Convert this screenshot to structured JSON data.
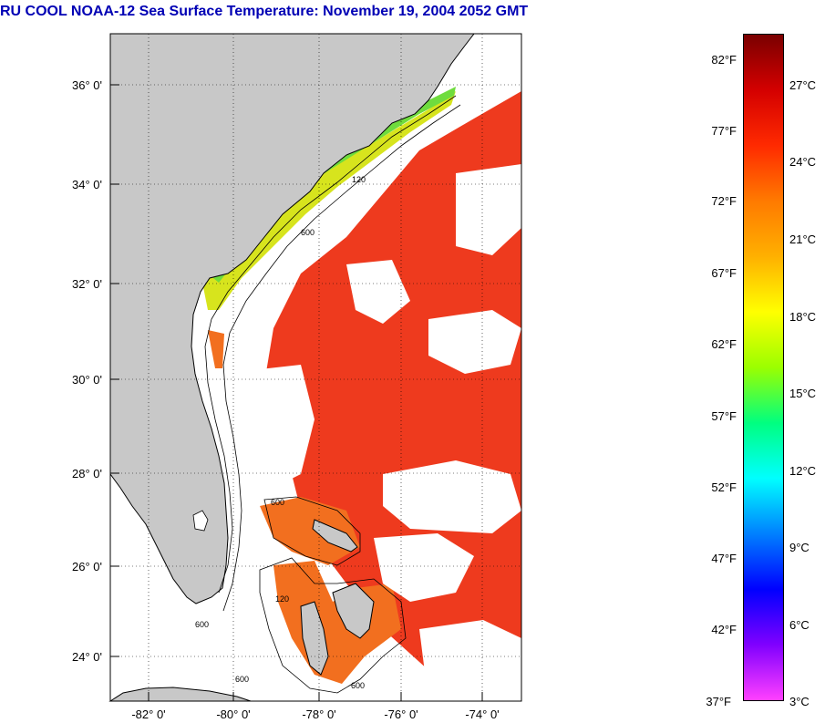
{
  "title": "RU COOL  NOAA-12  Sea Surface Temperature:  November 19, 2004 2052 GMT",
  "colors": {
    "title": "#0000b4",
    "land": "#c8c8c8",
    "ocean_warm": "#ee3a1e",
    "ocean_shelf": "#f26f1f",
    "coastal_yellow": "#d7e41d",
    "coastal_green": "#6fdc3e",
    "cloud": "#ffffff"
  },
  "map": {
    "lat_labels": [
      "36° 0'",
      "34° 0'",
      "32° 0'",
      "30° 0'",
      "28° 0'",
      "26° 0'",
      "24° 0'"
    ],
    "lon_labels": [
      "-82° 0'",
      "-80° 0'",
      "-78° 0'",
      "-76° 0'",
      "-74° 0'"
    ],
    "isobath_labels": [
      "120",
      "600",
      "600",
      "120",
      "600",
      "600",
      "600"
    ]
  },
  "colorbar": {
    "fahrenheit_labels": [
      "82°F",
      "77°F",
      "72°F",
      "67°F",
      "62°F",
      "57°F",
      "52°F",
      "47°F",
      "42°F",
      "37°F"
    ],
    "celsius_labels": [
      "27°C",
      "24°C",
      "21°C",
      "18°C",
      "15°C",
      "12°C",
      "9°C",
      "6°C",
      "3°C"
    ],
    "gradient_stops": [
      "#7a0000",
      "#d40000",
      "#ff2a00",
      "#ff7a00",
      "#ffb000",
      "#ffff00",
      "#9bff00",
      "#00ff80",
      "#00ffff",
      "#0080ff",
      "#0000ff",
      "#8000ff",
      "#ff40ff"
    ]
  }
}
